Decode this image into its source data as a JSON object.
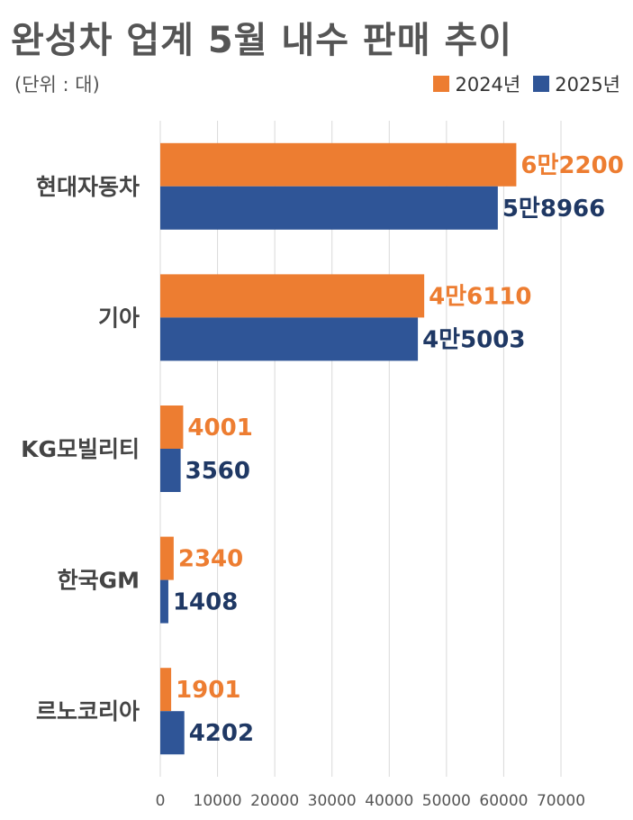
{
  "title": "완성차 업계 5월 내수 판매 추이",
  "unit_label": "(단위 : 대)",
  "colors": {
    "2024": "#ED7D31",
    "2025": "#2F5597",
    "label_2024": "#ED7D31",
    "label_2025": "#1F3864",
    "grid": "#D9D9D9"
  },
  "chart_data": {
    "type": "bar",
    "orientation": "horizontal",
    "categories": [
      "현대자동차",
      "기아",
      "KG모빌리티",
      "한국GM",
      "르노코리아"
    ],
    "series": [
      {
        "name": "2024년",
        "values": [
          62200,
          46110,
          4001,
          2340,
          1901
        ],
        "labels": [
          "6만2200",
          "4만6110",
          "4001",
          "2340",
          "1901"
        ]
      },
      {
        "name": "2025년",
        "values": [
          58966,
          45003,
          3560,
          1408,
          4202
        ],
        "labels": [
          "5만8966",
          "4만5003",
          "3560",
          "1408",
          "4202"
        ]
      }
    ],
    "xlim": [
      0,
      70000
    ],
    "xticks": [
      "0",
      "10000",
      "20000",
      "30000",
      "40000",
      "50000",
      "60000",
      "70000"
    ],
    "grid": true,
    "legend_position": "top-right"
  }
}
